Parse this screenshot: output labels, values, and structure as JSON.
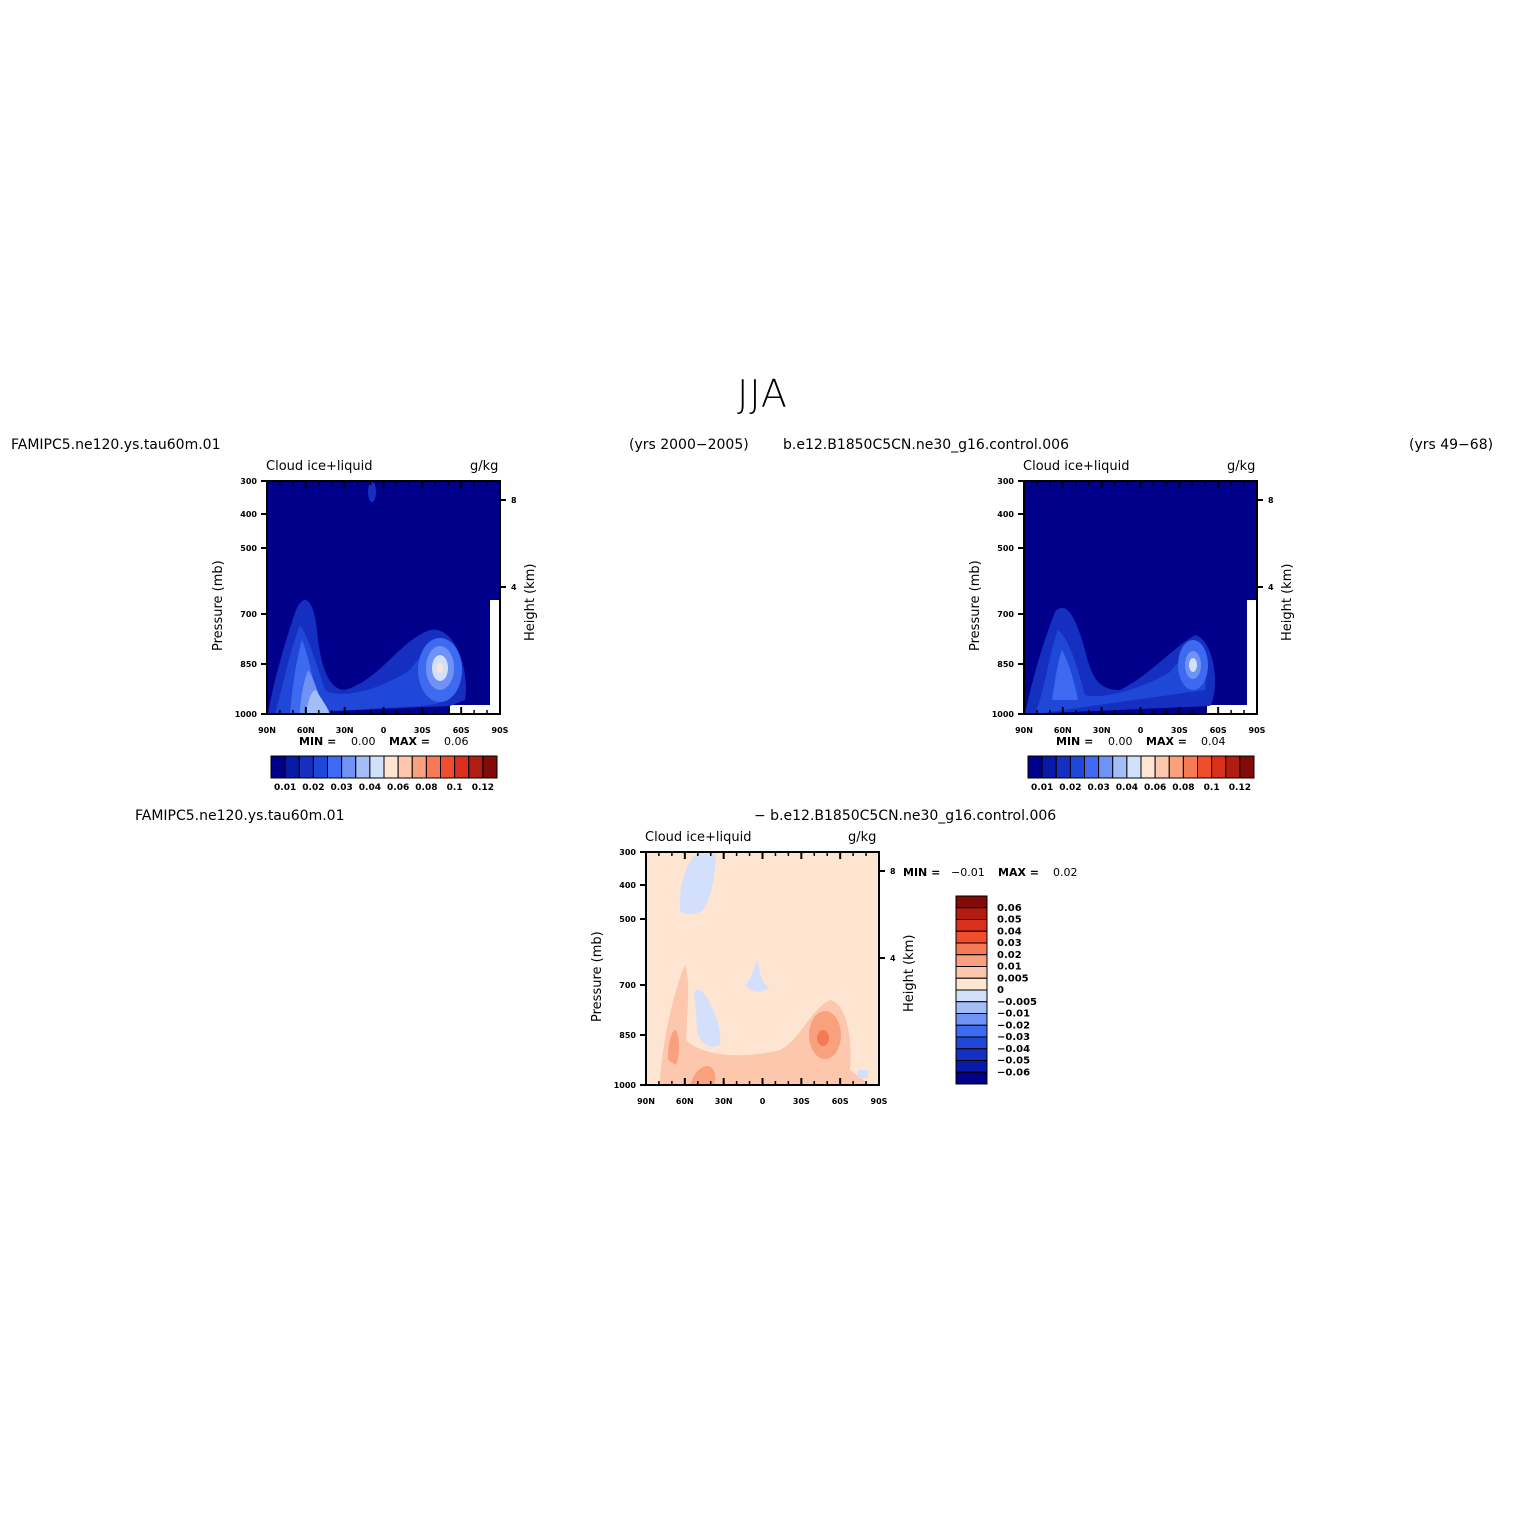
{
  "figure": {
    "title": "JJA",
    "panel_top_left": {
      "case": "FAMIPC5.ne120.ys.tau60m.01",
      "years": "(yrs 2000−2005)",
      "field": "Cloud ice+liquid",
      "units": "g/kg",
      "y_label": "Pressure (mb)",
      "y2_label": "Height (km)",
      "min_label": "MIN =",
      "min_value": "0.00",
      "max_label": "MAX =",
      "max_value": "0.06"
    },
    "panel_top_right": {
      "case": "b.e12.B1850C5CN.ne30_g16.control.006",
      "years": "(yrs 49−68)",
      "field": "Cloud ice+liquid",
      "units": "g/kg",
      "y_label": "Pressure (mb)",
      "y2_label": "Height (km)",
      "min_label": "MIN =",
      "min_value": "0.00",
      "max_label": "MAX =",
      "max_value": "0.04"
    },
    "panel_diff": {
      "case_a": "FAMIPC5.ne120.ys.tau60m.01",
      "case_b": "− b.e12.B1850C5CN.ne30_g16.control.006",
      "field": "Cloud ice+liquid",
      "units": "g/kg",
      "y_label": "Pressure (mb)",
      "y2_label": "Height (km)",
      "min_label": "MIN =",
      "min_value": "−0.01",
      "max_label": "MAX =",
      "max_value": "0.02"
    }
  },
  "chart_data": [
    {
      "type": "heatmap",
      "title": "Cloud ice+liquid",
      "units": "g/kg",
      "ylabel": "Pressure (mb)",
      "y2label": "Height (km)",
      "x_ticks": [
        "90N",
        "60N",
        "30N",
        "0",
        "30S",
        "60S",
        "90S"
      ],
      "y_ticks": [
        "300",
        "400",
        "500",
        "700",
        "850",
        "1000"
      ],
      "y2_ticks": [
        "8",
        "4"
      ],
      "colorbar_labels": [
        "0.01",
        "0.02",
        "0.03",
        "0.04",
        "0.06",
        "0.08",
        "0.1",
        "0.12"
      ],
      "min": 0.0,
      "max": 0.06
    },
    {
      "type": "heatmap",
      "title": "Cloud ice+liquid",
      "units": "g/kg",
      "ylabel": "Pressure (mb)",
      "y2label": "Height (km)",
      "x_ticks": [
        "90N",
        "60N",
        "30N",
        "0",
        "30S",
        "60S",
        "90S"
      ],
      "y_ticks": [
        "300",
        "400",
        "500",
        "700",
        "850",
        "1000"
      ],
      "y2_ticks": [
        "8",
        "4"
      ],
      "colorbar_labels": [
        "0.01",
        "0.02",
        "0.03",
        "0.04",
        "0.06",
        "0.08",
        "0.1",
        "0.12"
      ],
      "min": 0.0,
      "max": 0.04
    },
    {
      "type": "heatmap",
      "title": "Cloud ice+liquid",
      "units": "g/kg",
      "ylabel": "Pressure (mb)",
      "y2label": "Height (km)",
      "x_ticks": [
        "90N",
        "60N",
        "30N",
        "0",
        "30S",
        "60S",
        "90S"
      ],
      "y_ticks": [
        "300",
        "400",
        "500",
        "700",
        "850",
        "1000"
      ],
      "y2_ticks": [
        "8",
        "4"
      ],
      "colorbar_labels": [
        "0.06",
        "0.05",
        "0.04",
        "0.03",
        "0.02",
        "0.01",
        "0.005",
        "0",
        "−0.005",
        "−0.01",
        "−0.02",
        "−0.03",
        "−0.04",
        "−0.05",
        "−0.06"
      ],
      "min": -0.01,
      "max": 0.02
    }
  ],
  "colors": {
    "abs_scale": [
      "#00008b",
      "#0a1aa8",
      "#1530c0",
      "#2048d8",
      "#3d6af0",
      "#6e93f5",
      "#a3bdf7",
      "#d2e0fb",
      "#fde5d2",
      "#fcc7ac",
      "#f9a17d",
      "#f57a55",
      "#ef4d2c",
      "#d8301c",
      "#b01e12",
      "#800b08"
    ],
    "diff_scale": [
      "#800b08",
      "#b01e12",
      "#d8301c",
      "#ef4d2c",
      "#f57a55",
      "#f9a17d",
      "#fcc7ac",
      "#fde5d2",
      "#d2e0fb",
      "#a3bdf7",
      "#6e93f5",
      "#3d6af0",
      "#2048d8",
      "#1530c0",
      "#0a1aa8",
      "#00008b"
    ]
  }
}
